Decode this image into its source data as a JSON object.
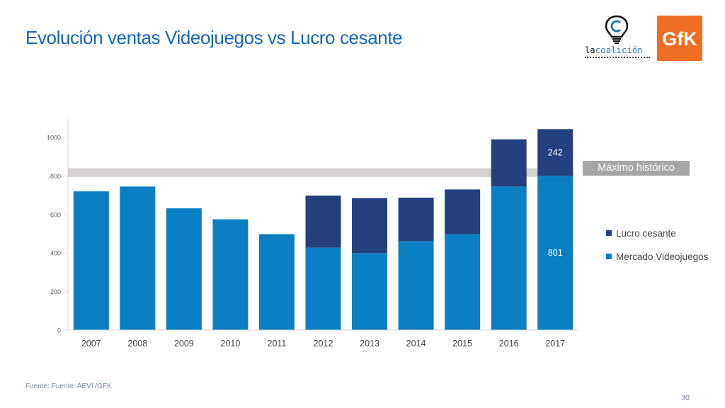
{
  "title": "Evolución ventas Videojuegos vs Lucro cesante",
  "logos": {
    "coalicion_text": "lacoalición",
    "gfk_text": "GfK"
  },
  "source": "Fuente: Fuente: AEVI /GFK",
  "page_number": "30",
  "colors": {
    "mercado": "#0a7fc4",
    "lucro": "#24407f",
    "max_band": "#d4d0d0",
    "max_label_bg": "#a7a6a7"
  },
  "chart_data": {
    "type": "bar",
    "stacked": true,
    "categories": [
      "2007",
      "2008",
      "2009",
      "2010",
      "2011",
      "2012",
      "2013",
      "2014",
      "2015",
      "2016",
      "2017"
    ],
    "series": [
      {
        "name": "Mercado Videojuegos",
        "values": [
          720,
          745,
          632,
          575,
          498,
          428,
          400,
          462,
          497,
          745,
          801
        ]
      },
      {
        "name": "Lucro cesante",
        "values": [
          0,
          0,
          0,
          0,
          0,
          270,
          285,
          225,
          233,
          245,
          242
        ]
      }
    ],
    "data_labels": [
      {
        "category": "2017",
        "series": "Mercado Videojuegos",
        "text": "801"
      },
      {
        "category": "2017",
        "series": "Lucro cesante",
        "text": "242"
      }
    ],
    "yticks": [
      "0",
      "200",
      "400",
      "600",
      "800",
      "1000"
    ],
    "ylim": [
      0,
      1100
    ],
    "reference_band": {
      "label": "Máximo histórico",
      "from": 795,
      "to": 840
    },
    "legend_position": "right",
    "legend": [
      "Lucro cesante",
      "Mercado Videojuegos"
    ]
  }
}
